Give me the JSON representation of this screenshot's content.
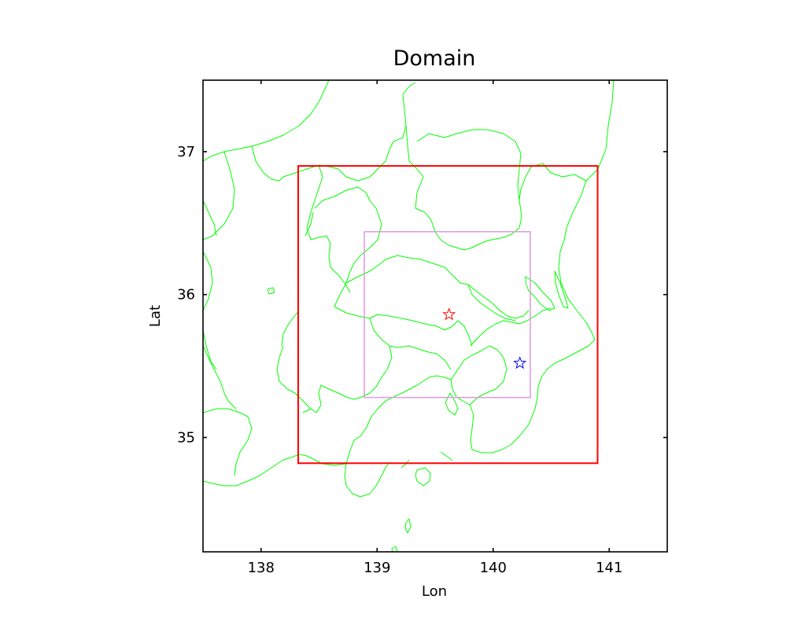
{
  "title": "Domain",
  "xlabel": "Lon",
  "ylabel": "Lat",
  "colors": {
    "coastline": "#00ff00",
    "outer_domain": "#ff0000",
    "inner_domain": "#dda0dd",
    "star_red": "#ff0000",
    "star_blue": "#0000ff"
  },
  "chart_data": {
    "type": "map",
    "xlim": [
      137.5,
      141.5
    ],
    "ylim": [
      34.2,
      37.5
    ],
    "xticks": [
      {
        "value": 138,
        "label": "138"
      },
      {
        "value": 139,
        "label": "139"
      },
      {
        "value": 140,
        "label": "140"
      },
      {
        "value": 141,
        "label": "141"
      }
    ],
    "yticks": [
      {
        "value": 35,
        "label": "35"
      },
      {
        "value": 36,
        "label": "36"
      },
      {
        "value": 37,
        "label": "37"
      }
    ],
    "domains": [
      {
        "id": "outer",
        "lon": [
          138.32,
          140.9
        ],
        "lat": [
          34.82,
          36.9
        ],
        "color": "#ff0000"
      },
      {
        "id": "inner",
        "lon": [
          138.89,
          140.32
        ],
        "lat": [
          35.28,
          36.44
        ],
        "color": "#dda0dd"
      }
    ],
    "markers": [
      {
        "id": "red-star",
        "lon": 139.62,
        "lat": 35.86,
        "color": "#ff0000",
        "symbol": "star"
      },
      {
        "id": "blue-star",
        "lon": 140.23,
        "lat": 35.52,
        "color": "#0000ff",
        "symbol": "star"
      }
    ]
  }
}
